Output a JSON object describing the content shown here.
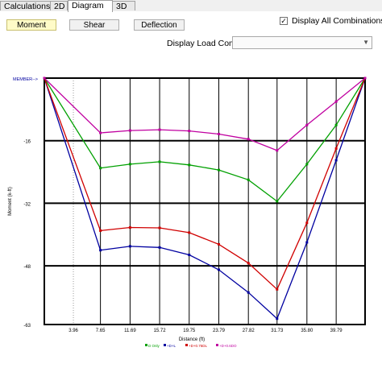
{
  "tabs": [
    {
      "label": "Calculations",
      "active": false
    },
    {
      "label": "2D",
      "active": false
    },
    {
      "label": "Diagram",
      "active": true
    },
    {
      "label": "3D",
      "active": false
    }
  ],
  "toolbar": {
    "moment_label": "Moment",
    "shear_label": "Shear",
    "deflection_label": "Deflection"
  },
  "display_all": {
    "label": "Display All Combinations",
    "checked": true
  },
  "load_comb": {
    "label": "Display Load Comb :",
    "value": ""
  },
  "colors": {
    "grid": "#000000",
    "dotted": "#9a9a9a"
  },
  "chart_data": {
    "type": "line",
    "xlabel": "Distance (ft)",
    "ylabel": "Moment (k-ft)",
    "member_label": "MEMBER-->",
    "xlim": [
      0,
      43.73
    ],
    "ylim": [
      -63,
      0
    ],
    "x_ticks": [
      3.96,
      7.65,
      11.69,
      15.72,
      19.75,
      23.79,
      27.82,
      31.73,
      35.8,
      39.79
    ],
    "x_tick_labels": [
      "3.96",
      "7.65",
      "11.69",
      "15.72",
      "19.75",
      "23.79",
      "27.82",
      "31.73",
      "35.80",
      "39.79"
    ],
    "y_ticks": [
      -16,
      -32,
      -48,
      -63
    ],
    "y_tick_labels": [
      "-16",
      "-32",
      "-48",
      "-63"
    ],
    "x_grid_major": [
      0,
      7.65,
      11.69,
      15.72,
      19.75,
      23.79,
      27.82,
      31.73,
      35.8,
      39.79,
      43.73
    ],
    "x_grid_dotted": [
      3.96
    ],
    "y_grid_major": [
      0,
      -16,
      -32,
      -48,
      -63
    ],
    "series": [
      {
        "name": "D Only",
        "color": "#00a000",
        "points": [
          [
            0,
            0
          ],
          [
            7.65,
            -23
          ],
          [
            11.69,
            -22
          ],
          [
            15.72,
            -21.4
          ],
          [
            19.75,
            -22.2
          ],
          [
            23.79,
            -23.5
          ],
          [
            27.82,
            -26
          ],
          [
            31.73,
            -31.5
          ],
          [
            35.8,
            -22
          ],
          [
            39.79,
            -12
          ],
          [
            43.73,
            0
          ]
        ]
      },
      {
        "name": "+D+L",
        "color": "#0000a0",
        "points": [
          [
            0,
            0
          ],
          [
            7.65,
            -44
          ],
          [
            11.69,
            -43
          ],
          [
            15.72,
            -43.3
          ],
          [
            19.75,
            -45.2
          ],
          [
            23.79,
            -49
          ],
          [
            27.82,
            -54.8
          ],
          [
            31.73,
            -61.5
          ],
          [
            35.8,
            -42
          ],
          [
            39.79,
            -21
          ],
          [
            43.73,
            0
          ]
        ]
      },
      {
        "name": "+D+0.75DL",
        "color": "#d00000",
        "points": [
          [
            0,
            0
          ],
          [
            7.65,
            -39
          ],
          [
            11.69,
            -38.2
          ],
          [
            15.72,
            -38.3
          ],
          [
            19.75,
            -39.5
          ],
          [
            23.79,
            -42.5
          ],
          [
            27.82,
            -47.3
          ],
          [
            31.73,
            -54
          ],
          [
            35.8,
            -37
          ],
          [
            39.79,
            -18
          ],
          [
            43.73,
            0
          ]
        ]
      },
      {
        "name": "+D+0.6DO",
        "color": "#c000a0",
        "points": [
          [
            0,
            0
          ],
          [
            7.65,
            -14
          ],
          [
            11.69,
            -13.4
          ],
          [
            15.72,
            -13.2
          ],
          [
            19.75,
            -13.5
          ],
          [
            23.79,
            -14.3
          ],
          [
            27.82,
            -15.6
          ],
          [
            31.73,
            -18.5
          ],
          [
            35.8,
            -12
          ],
          [
            39.79,
            -6
          ],
          [
            43.73,
            0
          ]
        ]
      }
    ]
  }
}
